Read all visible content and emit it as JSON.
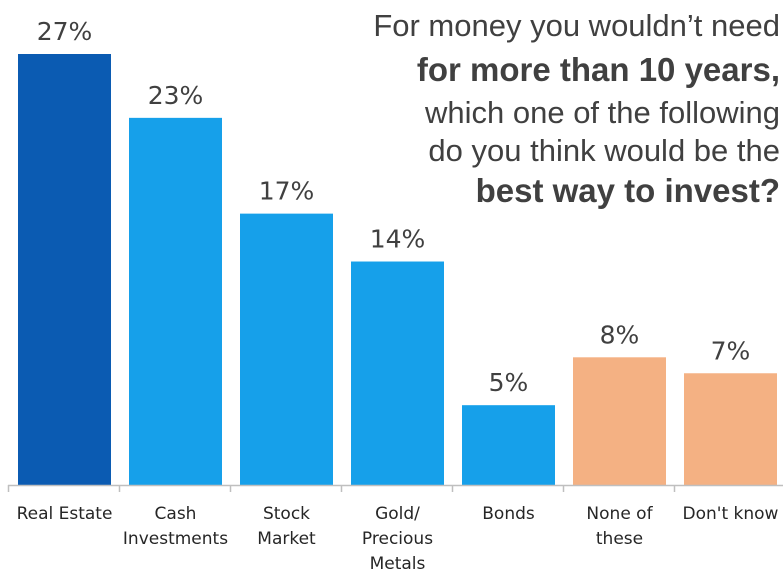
{
  "question": {
    "lines": [
      {
        "text": "For money you wouldn’t need",
        "bold": false
      },
      {
        "text": "for more than 10 years,",
        "bold": true
      },
      {
        "text": "which one of the following",
        "bold": false
      },
      {
        "text": "do you think would be the",
        "bold": false
      },
      {
        "text": "best way to invest?",
        "bold": true
      }
    ]
  },
  "chart_data": {
    "type": "bar",
    "categories": [
      [
        "Real Estate"
      ],
      [
        "Cash",
        "Investments"
      ],
      [
        "Stock",
        "Market"
      ],
      [
        "Gold/",
        "Precious",
        "Metals"
      ],
      [
        "Bonds"
      ],
      [
        "None of",
        "these"
      ],
      [
        "Don't know"
      ]
    ],
    "values": [
      27,
      23,
      17,
      14,
      5,
      8,
      7
    ],
    "value_labels": [
      "27%",
      "23%",
      "17%",
      "14%",
      "5%",
      "8%",
      "7%"
    ],
    "colors": [
      "#0b5bb2",
      "#16a0ea",
      "#16a0ea",
      "#16a0ea",
      "#16a0ea",
      "#f4b183",
      "#f4b183"
    ],
    "unit": "%",
    "ylim": [
      0,
      27
    ],
    "grid": false,
    "legend": "none"
  }
}
